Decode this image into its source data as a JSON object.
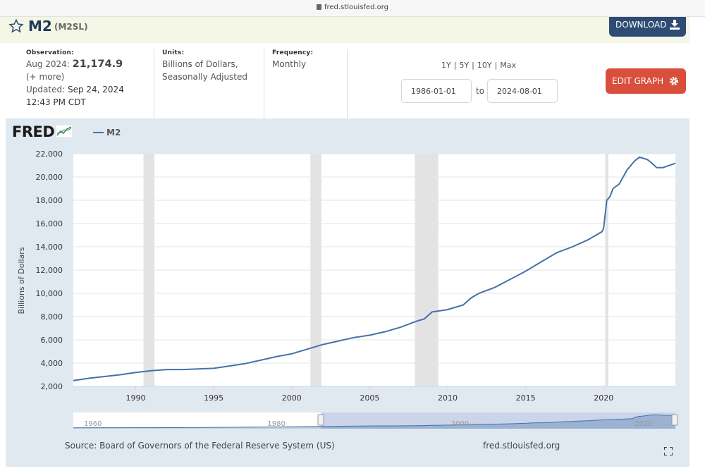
{
  "browser": {
    "url": "fred.stlouisfed.org"
  },
  "header": {
    "title": "M2",
    "code": "(M2SL)",
    "download_label": "DOWNLOAD"
  },
  "observation": {
    "label": "Observation:",
    "period": "Aug 2024:",
    "value": "21,174.9",
    "more": "(+ more)",
    "updated_label": "Updated:",
    "updated_date": "Sep 24, 2024",
    "updated_time": "12:43 PM CDT"
  },
  "units": {
    "label": "Units:",
    "line1": "Billions of Dollars,",
    "line2": "Seasonally Adjusted"
  },
  "frequency": {
    "label": "Frequency:",
    "value": "Monthly"
  },
  "ranges": [
    "1Y",
    "5Y",
    "10Y",
    "Max"
  ],
  "range_sep": "|",
  "dates": {
    "start": "1986-01-01",
    "to": "to",
    "end": "2024-08-01"
  },
  "edit_label": "EDIT GRAPH",
  "legend": {
    "logo": "FRED",
    "series": "M2"
  },
  "footer": {
    "source": "Source: Board of Governors of the Federal Reserve System (US)",
    "url": "fred.stlouisfed.org"
  },
  "navigator_labels": [
    "1960",
    "1980",
    "2000",
    "2020"
  ],
  "colors": {
    "line": "#4572a7",
    "recession": "#e3e3e3",
    "edit": "#d94f3c",
    "download": "#2e4c73"
  },
  "chart_data": {
    "type": "line",
    "ylabel": "Billions of Dollars",
    "ylim": [
      2000,
      22000
    ],
    "yticks": [
      "2,000",
      "4,000",
      "6,000",
      "8,000",
      "10,000",
      "12,000",
      "14,000",
      "16,000",
      "18,000",
      "20,000",
      "22,000"
    ],
    "xlim": [
      1986.0,
      2024.6
    ],
    "xticks": [
      "1990",
      "1995",
      "2000",
      "2005",
      "2010",
      "2015",
      "2020"
    ],
    "recessions": [
      [
        1990.5,
        1991.2
      ],
      [
        2001.2,
        2001.9
      ],
      [
        2007.9,
        2009.4
      ],
      [
        2020.1,
        2020.3
      ]
    ],
    "series": [
      {
        "name": "M2",
        "x": [
          1986.0,
          1987.0,
          1988.0,
          1989.0,
          1990.0,
          1991.0,
          1992.0,
          1993.0,
          1994.0,
          1995.0,
          1996.0,
          1997.0,
          1998.0,
          1999.0,
          2000.0,
          2001.0,
          2002.0,
          2003.0,
          2004.0,
          2005.0,
          2006.0,
          2007.0,
          2008.0,
          2008.5,
          2009.0,
          2010.0,
          2011.0,
          2011.5,
          2012.0,
          2013.0,
          2014.0,
          2015.0,
          2016.0,
          2017.0,
          2018.0,
          2019.0,
          2019.9,
          2020.0,
          2020.2,
          2020.4,
          2020.6,
          2021.0,
          2021.5,
          2022.0,
          2022.3,
          2022.8,
          2023.0,
          2023.4,
          2023.8,
          2024.0,
          2024.6
        ],
        "values": [
          2500,
          2700,
          2850,
          3000,
          3200,
          3350,
          3450,
          3450,
          3500,
          3550,
          3750,
          3950,
          4250,
          4550,
          4800,
          5200,
          5600,
          5900,
          6200,
          6400,
          6700,
          7100,
          7600,
          7800,
          8400,
          8600,
          9000,
          9600,
          10000,
          10500,
          11200,
          11900,
          12700,
          13500,
          14000,
          14600,
          15300,
          15600,
          18000,
          18300,
          19000,
          19400,
          20600,
          21400,
          21700,
          21500,
          21300,
          20800,
          20800,
          20900,
          21174.9
        ]
      }
    ]
  }
}
